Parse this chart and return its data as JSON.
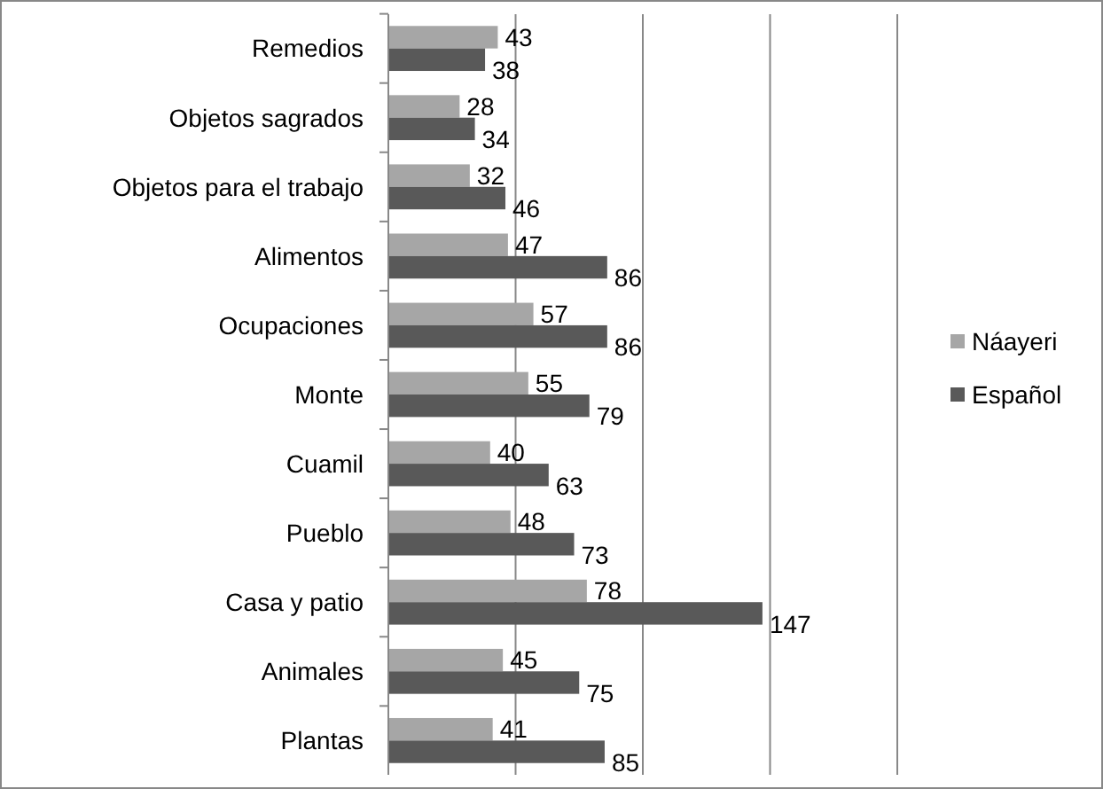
{
  "chart_data": {
    "type": "bar",
    "orientation": "horizontal",
    "categories": [
      "Remedios",
      "Objetos sagrados",
      "Objetos para el trabajo",
      "Alimentos",
      "Ocupaciones",
      "Monte",
      "Cuamil",
      "Pueblo",
      "Casa y patio",
      "Animales",
      "Plantas"
    ],
    "series": [
      {
        "name": "Náayeri",
        "color": "#a6a6a6",
        "values": [
          43,
          28,
          32,
          47,
          57,
          55,
          40,
          48,
          78,
          45,
          41
        ]
      },
      {
        "name": "Español",
        "color": "#595959",
        "values": [
          38,
          34,
          46,
          86,
          86,
          79,
          63,
          73,
          147,
          75,
          85
        ]
      }
    ],
    "xlim": [
      0,
      200
    ],
    "xticks": [
      {
        "value": 0,
        "label": null
      },
      {
        "value": 50,
        "label": null
      },
      {
        "value": 100,
        "label": null
      },
      {
        "value": 150,
        "label": null
      },
      {
        "value": 200,
        "label": null
      }
    ],
    "tick_labels": "y",
    "grid": "x",
    "legend": "right",
    "data_labels": true
  }
}
